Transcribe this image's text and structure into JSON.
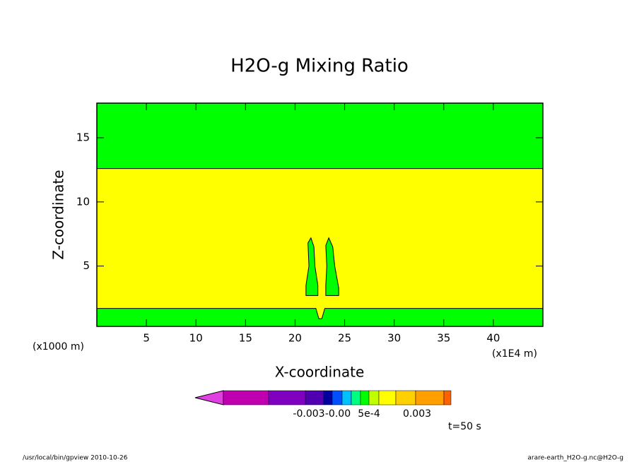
{
  "chart_data": {
    "type": "contour",
    "title": "H2O-g Mixing Ratio",
    "x_label": "X-coordinate",
    "y_label": "Z-coordinate",
    "x_unit": "(x1000 m)",
    "x_unit2": "(x1E4 m)",
    "xlim": [
      0,
      45
    ],
    "ylim": [
      0.3,
      17.7
    ],
    "xticks": [
      5,
      10,
      15,
      20,
      25,
      30,
      35,
      40
    ],
    "yticks": [
      5,
      10,
      15
    ],
    "background_color": "#ffff00",
    "regions": [
      {
        "color": "#00ff00",
        "x": [
          0,
          45,
          45,
          0
        ],
        "z": [
          12.6,
          12.6,
          17.7,
          17.7
        ]
      },
      {
        "color": "#00ff00",
        "x": [
          0,
          45,
          45,
          23.0,
          22.7,
          22.4,
          22.1,
          0
        ],
        "z": [
          0.3,
          0.3,
          1.7,
          1.7,
          0.9,
          0.9,
          1.7,
          1.7
        ]
      },
      {
        "color": "#00ff00",
        "x": [
          21.1,
          22.3,
          22.3,
          22.0,
          21.9,
          21.6,
          21.3,
          21.4,
          21.1
        ],
        "z": [
          2.7,
          2.7,
          3.5,
          5,
          6.5,
          7.2,
          6.8,
          5,
          3.5
        ]
      },
      {
        "color": "#00ff00",
        "x": [
          23.1,
          24.4,
          24.4,
          24.0,
          23.8,
          23.4,
          23.1,
          23.2,
          23.1
        ],
        "z": [
          2.7,
          2.7,
          3.3,
          5,
          6.5,
          7.2,
          6.6,
          5,
          3.5
        ]
      }
    ],
    "colorbar": {
      "colors": [
        "#e040e0",
        "#c000b0",
        "#8000c0",
        "#5000b0",
        "#0000a0",
        "#0050ff",
        "#00c0ff",
        "#00ff80",
        "#00ff00",
        "#c0ff00",
        "#ffff00",
        "#ffd000",
        "#ffa000",
        "#ff6000",
        "#ff0000"
      ],
      "labels": [
        "-0.003",
        "-0.00",
        "5e-4",
        "0.003"
      ]
    },
    "time_label": "t=50 s",
    "footer_left": "/usr/local/bin/gpview  2010-10-26",
    "footer_right": "arare-earth_H2O-g.nc@H2O-g"
  }
}
